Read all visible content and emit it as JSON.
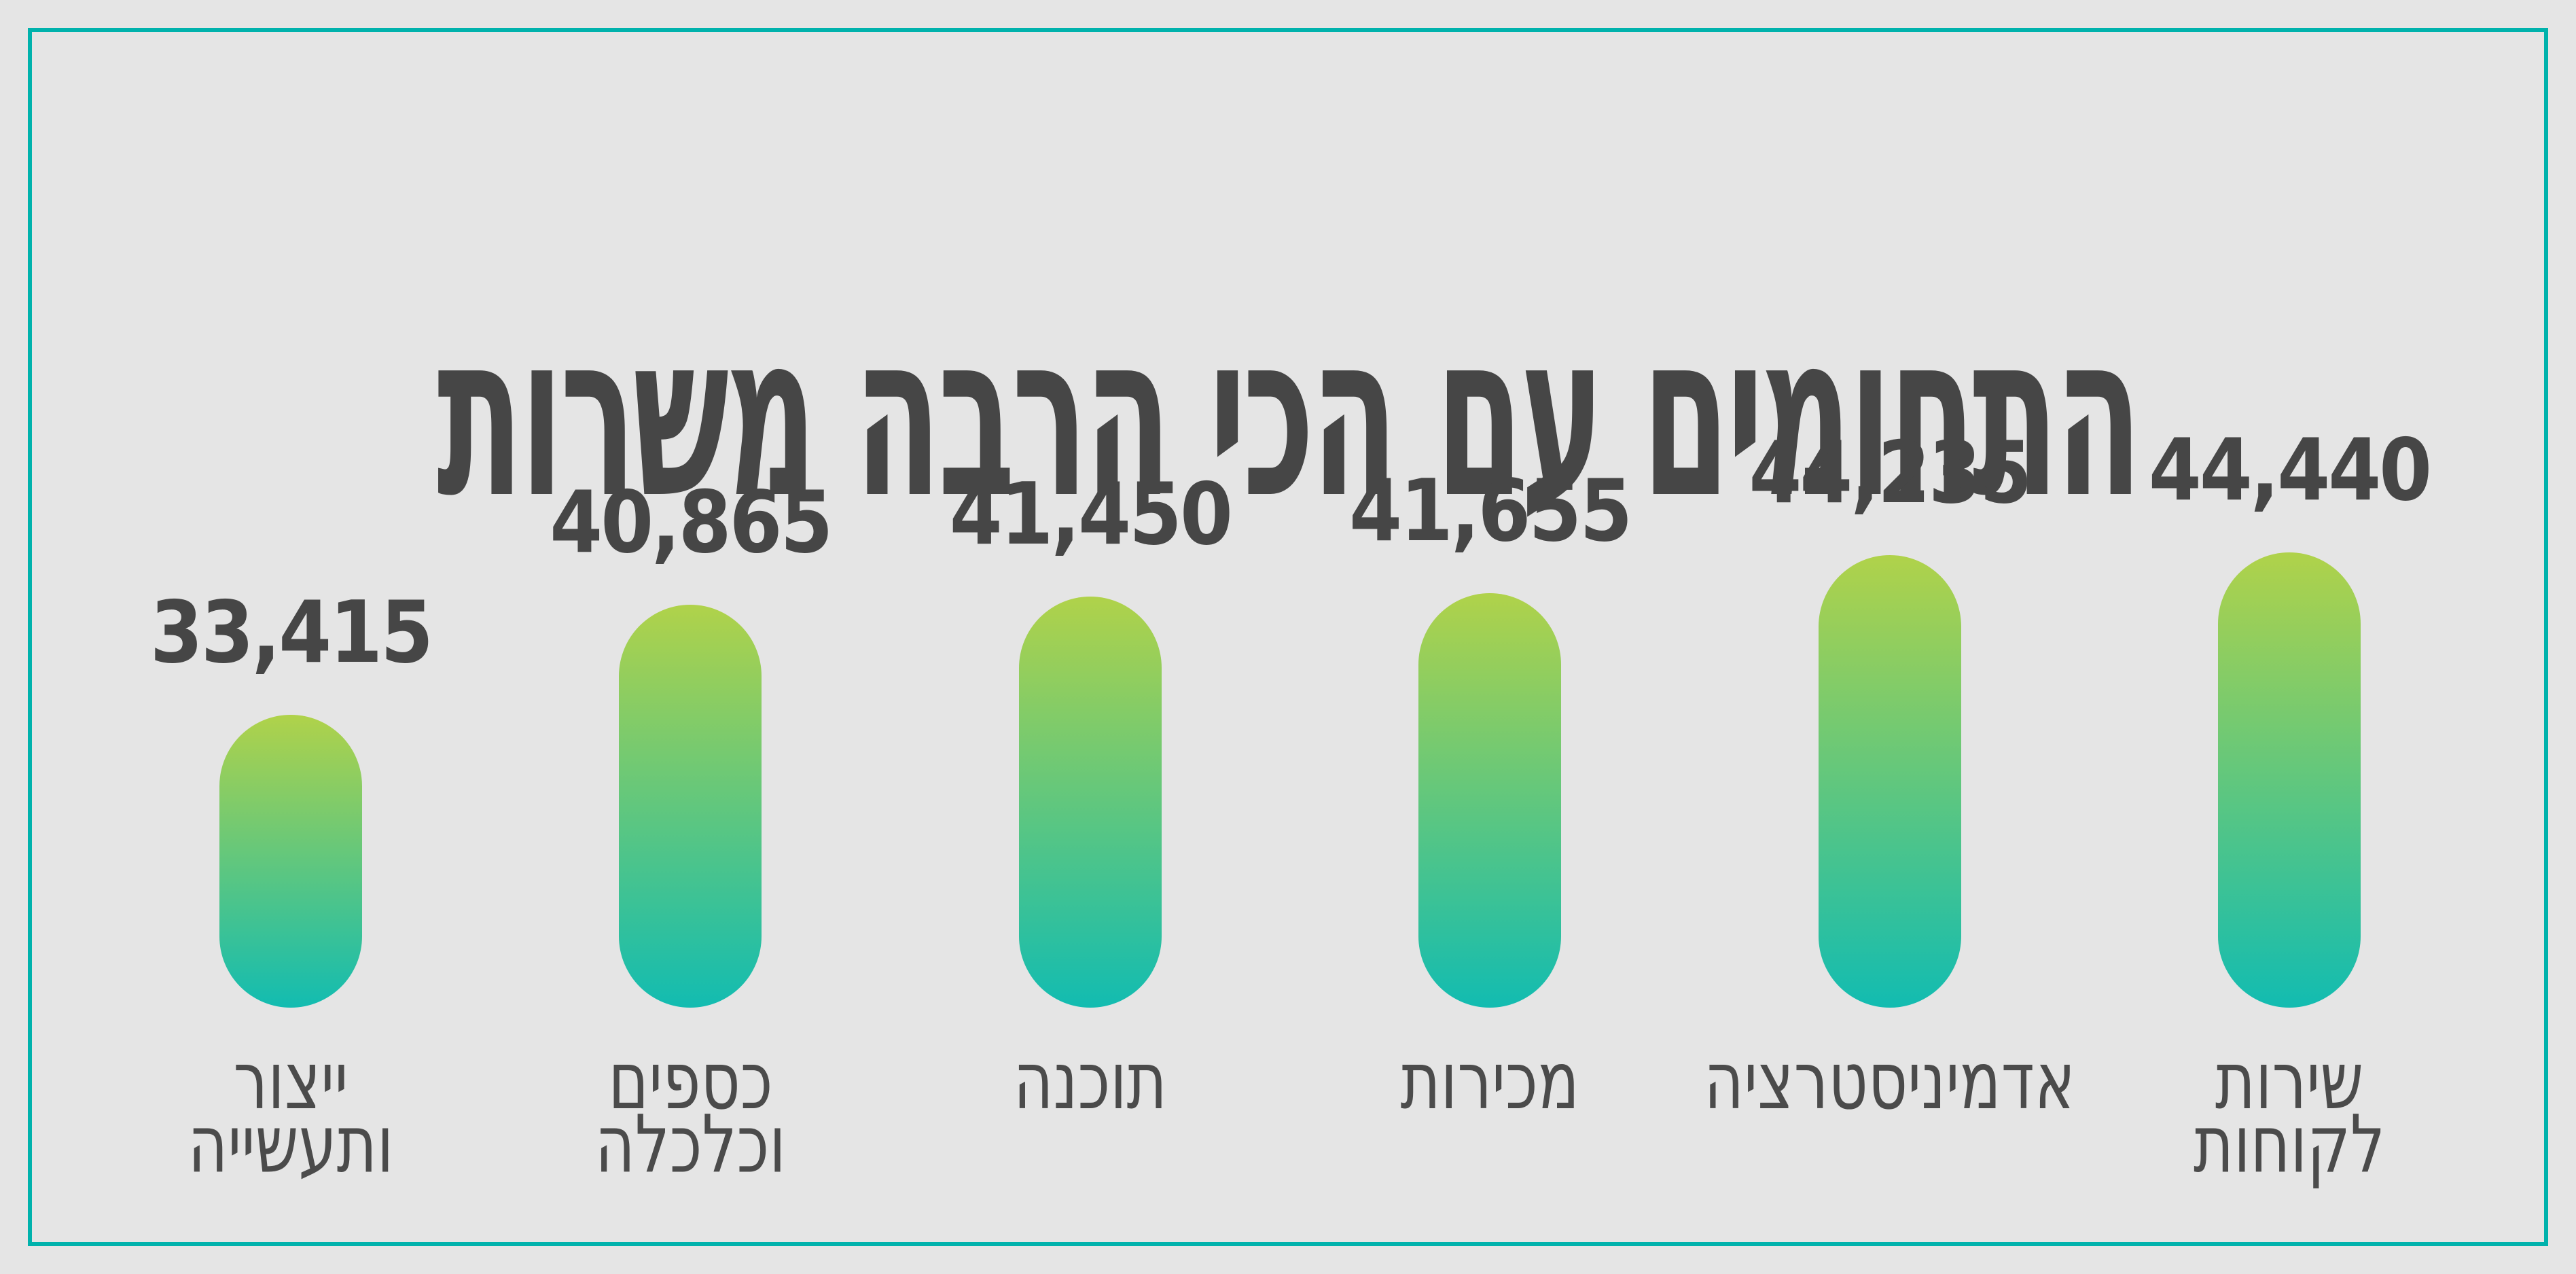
{
  "title": "התחומים עם הכי הרבה משרות",
  "colors": {
    "background": "#e5e5e5",
    "frame_border": "#00b2ac",
    "title_text": "#464646",
    "value_text": "#464646",
    "label_text": "#4b4b4b",
    "bar_gradient_top": "#b0d24a",
    "bar_gradient_bottom": "#12bcb1"
  },
  "chart_data": {
    "type": "bar",
    "title": "התחומים עם הכי הרבה משרות",
    "orientation": "vertical",
    "grid": false,
    "legend": "none",
    "xlabel": "",
    "ylabel": "",
    "value_axis_visible": false,
    "bar_shape": "rounded-pill",
    "categories": [
      "ייצור ותעשייה",
      "כספים וכלכלה",
      "תוכנה",
      "מכירות",
      "אדמיניסטרציה",
      "שירות לקוחות"
    ],
    "category_label_lines": [
      "ייצור\nותעשייה",
      "כספים\nוכלכלה",
      "תוכנה",
      "מכירות",
      "אדמיניסטרציה",
      "שירות\nלקוחות"
    ],
    "values": [
      33415,
      40865,
      41450,
      41655,
      44235,
      44440
    ],
    "value_labels": [
      "33,415",
      "40,865",
      "41,450",
      "41,655",
      "44,235",
      "44,440"
    ]
  }
}
